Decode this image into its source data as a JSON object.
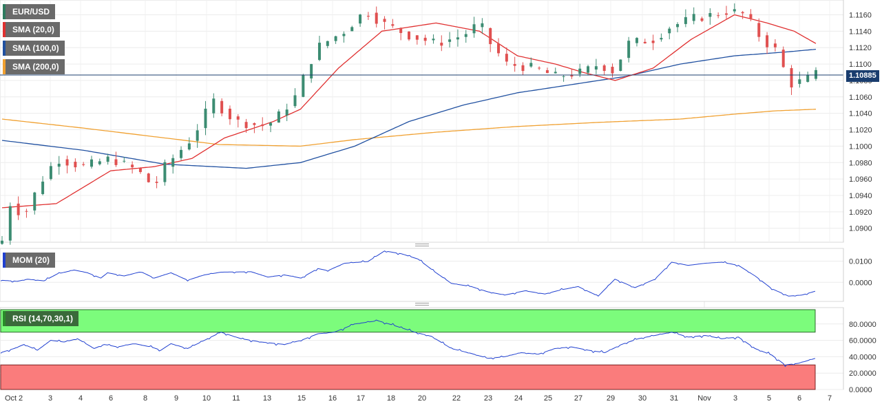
{
  "legends": {
    "symbol": "EUR/USD",
    "sma20": "SMA (20,0)",
    "sma100": "SMA (100,0)",
    "sma200": "SMA (200,0)",
    "mom": "MOM (20)",
    "rsi": "RSI (14,70,30,1)"
  },
  "colors": {
    "bull": "#3c8c72",
    "bear": "#e05050",
    "sma20": "#e03030",
    "sma100": "#2050a0",
    "sma200": "#f0a030",
    "indicator": "#2040d0",
    "rsi_over": "#7cfc7c",
    "rsi_under": "#fa7c7c"
  },
  "chart_data": [
    {
      "type": "candlestick",
      "title": "EUR/USD",
      "x_tick_labels": [
        "Oct",
        "2",
        "3",
        "4",
        "6",
        "8",
        "9",
        "10",
        "11",
        "13",
        "15",
        "16",
        "17",
        "18",
        "20",
        "22",
        "23",
        "24",
        "25",
        "27",
        "29",
        "30",
        "31",
        "Nov",
        "3",
        "5",
        "6",
        "7"
      ],
      "y_ticks": [
        1.09,
        1.092,
        1.094,
        1.096,
        1.098,
        1.1,
        1.102,
        1.104,
        1.106,
        1.108,
        1.11,
        1.112,
        1.114,
        1.116
      ],
      "ylim": [
        1.0883,
        1.1178
      ],
      "current_price": "1.10885",
      "current_price_value": 1.10885,
      "close_keypoints": [
        [
          0,
          1.0885
        ],
        [
          3,
          1.093
        ],
        [
          8,
          1.0915
        ],
        [
          14,
          1.0955
        ],
        [
          20,
          1.0985
        ],
        [
          30,
          1.0975
        ],
        [
          40,
          1.0985
        ],
        [
          50,
          1.097
        ],
        [
          56,
          1.095
        ],
        [
          60,
          1.0975
        ],
        [
          70,
          1.101
        ],
        [
          75,
          1.104
        ],
        [
          78,
          1.1055
        ],
        [
          86,
          1.103
        ],
        [
          96,
          1.1025
        ],
        [
          100,
          1.103
        ],
        [
          108,
          1.106
        ],
        [
          112,
          1.109
        ],
        [
          116,
          1.112
        ],
        [
          126,
          1.114
        ],
        [
          134,
          1.1165
        ],
        [
          140,
          1.115
        ],
        [
          150,
          1.1135
        ],
        [
          160,
          1.1125
        ],
        [
          170,
          1.1135
        ],
        [
          176,
          1.115
        ],
        [
          180,
          1.1125
        ],
        [
          186,
          1.11
        ],
        [
          196,
          1.1095
        ],
        [
          204,
          1.1085
        ],
        [
          214,
          1.109
        ],
        [
          220,
          1.11
        ],
        [
          226,
          1.109
        ],
        [
          230,
          1.1125
        ],
        [
          240,
          1.113
        ],
        [
          246,
          1.1145
        ],
        [
          254,
          1.1155
        ],
        [
          262,
          1.116
        ],
        [
          268,
          1.1165
        ],
        [
          274,
          1.116
        ],
        [
          280,
          1.113
        ],
        [
          286,
          1.1115
        ],
        [
          290,
          1.1075
        ],
        [
          296,
          1.108
        ],
        [
          300,
          1.1088
        ]
      ],
      "candle_count": 301,
      "sma_keypoints": {
        "sma20": [
          [
            0,
            1.0925
          ],
          [
            20,
            1.093
          ],
          [
            40,
            1.097
          ],
          [
            56,
            1.0975
          ],
          [
            70,
            1.0985
          ],
          [
            82,
            1.101
          ],
          [
            100,
            1.103
          ],
          [
            110,
            1.1045
          ],
          [
            124,
            1.1095
          ],
          [
            140,
            1.114
          ],
          [
            160,
            1.115
          ],
          [
            176,
            1.114
          ],
          [
            190,
            1.111
          ],
          [
            204,
            1.11
          ],
          [
            214,
            1.109
          ],
          [
            226,
            1.108
          ],
          [
            240,
            1.1095
          ],
          [
            254,
            1.113
          ],
          [
            270,
            1.116
          ],
          [
            282,
            1.115
          ],
          [
            292,
            1.114
          ],
          [
            300,
            1.1125
          ]
        ],
        "sma100": [
          [
            0,
            1.1007
          ],
          [
            30,
            1.0995
          ],
          [
            60,
            1.0978
          ],
          [
            90,
            1.0973
          ],
          [
            110,
            1.098
          ],
          [
            130,
            1.1
          ],
          [
            150,
            1.103
          ],
          [
            170,
            1.105
          ],
          [
            190,
            1.1065
          ],
          [
            210,
            1.1075
          ],
          [
            230,
            1.1085
          ],
          [
            250,
            1.11
          ],
          [
            270,
            1.111
          ],
          [
            290,
            1.1115
          ],
          [
            300,
            1.1118
          ]
        ],
        "sma200": [
          [
            0,
            1.1033
          ],
          [
            30,
            1.1022
          ],
          [
            60,
            1.101
          ],
          [
            80,
            1.1002
          ],
          [
            110,
            1.1
          ],
          [
            130,
            1.1008
          ],
          [
            160,
            1.1017
          ],
          [
            190,
            1.1024
          ],
          [
            220,
            1.1029
          ],
          [
            250,
            1.1033
          ],
          [
            270,
            1.1039
          ],
          [
            285,
            1.1043
          ],
          [
            300,
            1.1045
          ]
        ]
      }
    },
    {
      "type": "line",
      "title": "MOM (20)",
      "y_ticks": [
        0.0,
        0.01
      ],
      "ylim": [
        -0.009,
        0.016
      ],
      "keypoints": [
        [
          0,
          0.001
        ],
        [
          10,
          0.0005
        ],
        [
          16,
          0.0015
        ],
        [
          26,
          0.0007
        ],
        [
          34,
          0.004
        ],
        [
          44,
          0.0058
        ],
        [
          52,
          0.0045
        ],
        [
          60,
          0.002
        ],
        [
          64,
          0.0045
        ],
        [
          74,
          0.003
        ],
        [
          84,
          0.005
        ],
        [
          92,
          0.002
        ],
        [
          102,
          0.0045
        ],
        [
          112,
          0.001
        ],
        [
          122,
          0.0035
        ],
        [
          132,
          0.0048
        ],
        [
          150,
          0.005
        ],
        [
          160,
          0.0025
        ],
        [
          170,
          0.0035
        ],
        [
          180,
          0.002
        ],
        [
          190,
          0.0065
        ],
        [
          196,
          0.0055
        ],
        [
          206,
          0.009
        ],
        [
          220,
          0.0098
        ],
        [
          230,
          0.0148
        ],
        [
          240,
          0.0135
        ],
        [
          250,
          0.011
        ],
        [
          260,
          0.005
        ],
        [
          270,
          -0.0005
        ],
        [
          282,
          -0.002
        ],
        [
          292,
          -0.0045
        ],
        [
          302,
          -0.006
        ],
        [
          314,
          -0.004
        ],
        [
          326,
          -0.0055
        ],
        [
          336,
          -0.0035
        ],
        [
          346,
          -0.002
        ],
        [
          358,
          -0.0065
        ],
        [
          368,
          0.0015
        ],
        [
          380,
          -0.0025
        ],
        [
          392,
          0.0015
        ],
        [
          402,
          0.0095
        ],
        [
          412,
          0.008
        ],
        [
          422,
          0.009
        ],
        [
          432,
          0.0095
        ],
        [
          442,
          0.008
        ],
        [
          452,
          0.003
        ],
        [
          462,
          -0.003
        ],
        [
          472,
          -0.0065
        ],
        [
          480,
          -0.006
        ],
        [
          488,
          -0.0042
        ]
      ],
      "x_count": 489
    },
    {
      "type": "line",
      "title": "RSI (14,70,30,1)",
      "y_ticks": [
        0,
        20,
        40,
        60,
        80
      ],
      "y_tick_labels": [
        "0.0000",
        "20.0000",
        "40.0000",
        "60.0000",
        "80.0000"
      ],
      "ylim": [
        0,
        100
      ],
      "overbought": 70,
      "oversold": 30,
      "keypoints": [
        [
          0,
          45
        ],
        [
          8,
          50
        ],
        [
          14,
          55
        ],
        [
          22,
          48
        ],
        [
          30,
          60
        ],
        [
          38,
          58
        ],
        [
          46,
          62
        ],
        [
          56,
          50
        ],
        [
          62,
          55
        ],
        [
          70,
          52
        ],
        [
          80,
          56
        ],
        [
          90,
          52
        ],
        [
          96,
          48
        ],
        [
          102,
          56
        ],
        [
          112,
          50
        ],
        [
          122,
          60
        ],
        [
          132,
          70
        ],
        [
          144,
          62
        ],
        [
          156,
          58
        ],
        [
          170,
          55
        ],
        [
          180,
          60
        ],
        [
          190,
          68
        ],
        [
          200,
          70
        ],
        [
          212,
          80
        ],
        [
          226,
          84
        ],
        [
          236,
          78
        ],
        [
          248,
          70
        ],
        [
          258,
          65
        ],
        [
          270,
          50
        ],
        [
          282,
          44
        ],
        [
          292,
          38
        ],
        [
          302,
          40
        ],
        [
          312,
          45
        ],
        [
          322,
          43
        ],
        [
          332,
          50
        ],
        [
          342,
          52
        ],
        [
          352,
          48
        ],
        [
          362,
          45
        ],
        [
          372,
          55
        ],
        [
          382,
          62
        ],
        [
          392,
          66
        ],
        [
          402,
          70
        ],
        [
          412,
          64
        ],
        [
          422,
          66
        ],
        [
          432,
          62
        ],
        [
          442,
          64
        ],
        [
          452,
          50
        ],
        [
          462,
          42
        ],
        [
          470,
          30
        ],
        [
          478,
          32
        ],
        [
          488,
          38
        ]
      ],
      "x_count": 489
    }
  ]
}
